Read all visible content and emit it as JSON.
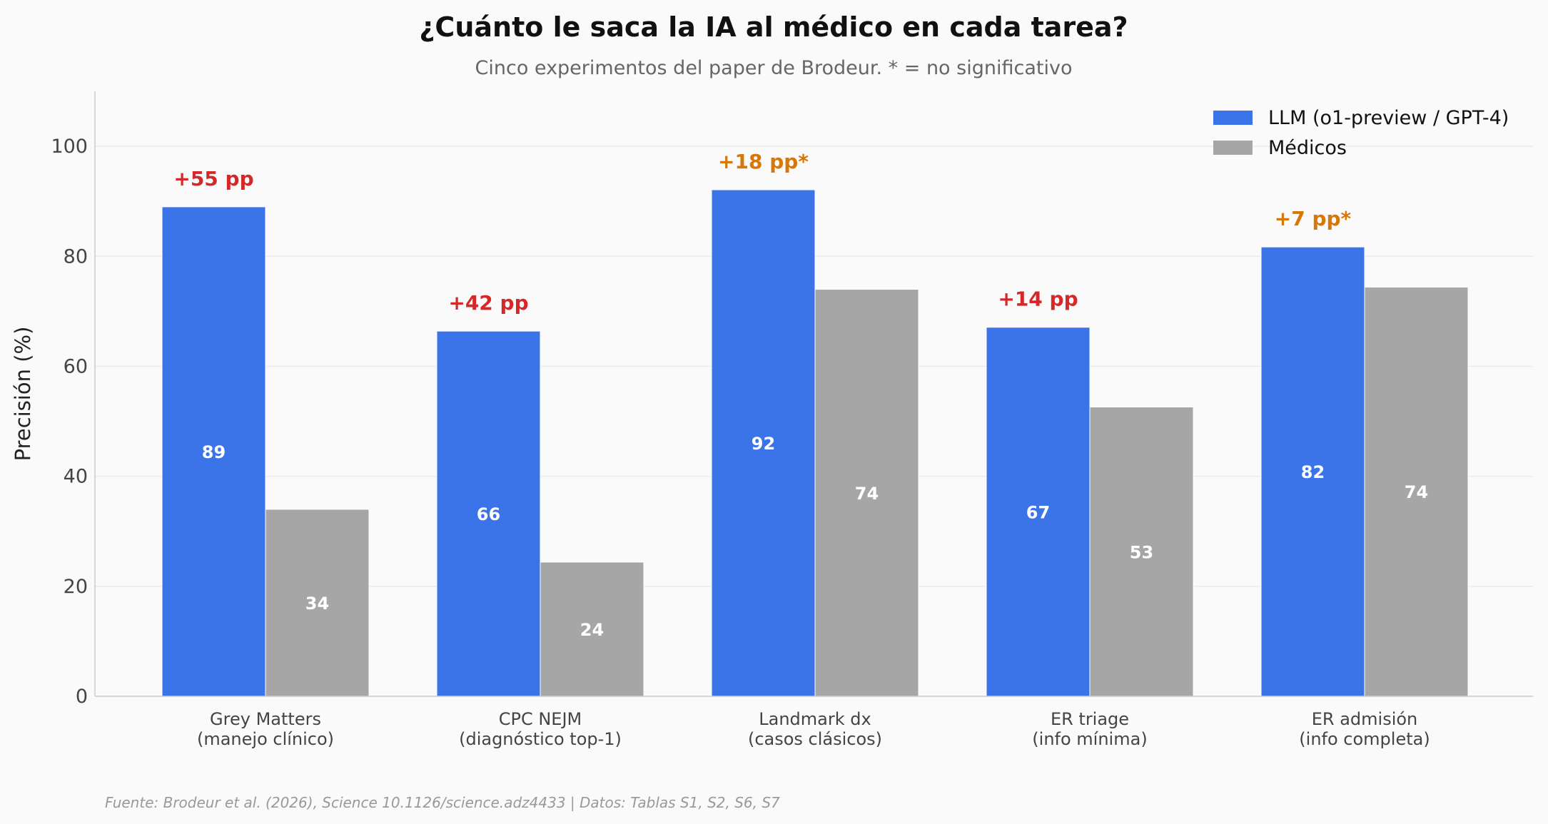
{
  "chart_data": {
    "type": "bar",
    "title": "¿Cuánto le saca la IA al médico en cada tarea?",
    "subtitle": "Cinco experimentos del paper de Brodeur. * = no significativo",
    "xlabel": "",
    "ylabel": "Precisión (%)",
    "ylim": [
      0,
      110
    ],
    "yticks": [
      0,
      20,
      40,
      60,
      80,
      100
    ],
    "grid": true,
    "legend_position": "top-right",
    "categories": [
      [
        "Grey Matters",
        "(manejo clínico)"
      ],
      [
        "CPC NEJM",
        "(diagnóstico top-1)"
      ],
      [
        "Landmark dx",
        "(casos clásicos)"
      ],
      [
        "ER triage",
        "(info mínima)"
      ],
      [
        "ER admisión",
        "(info completa)"
      ]
    ],
    "series": [
      {
        "name": "LLM (o1-preview / GPT-4)",
        "color": "#3b73e8",
        "values": [
          89.0,
          66.4,
          92.1,
          67.1,
          81.7
        ],
        "labels": [
          "89",
          "66",
          "92",
          "67",
          "82"
        ]
      },
      {
        "name": "Médicos",
        "color": "#a6a6a6",
        "values": [
          34.0,
          24.4,
          74.0,
          52.6,
          74.4
        ],
        "labels": [
          "34",
          "24",
          "74",
          "53",
          "74"
        ]
      }
    ],
    "annotations": [
      {
        "text": "+55 pp",
        "significant": true
      },
      {
        "text": "+42 pp",
        "significant": true
      },
      {
        "text": "+18 pp*",
        "significant": false
      },
      {
        "text": "+14 pp",
        "significant": true
      },
      {
        "text": "+7 pp*",
        "significant": false
      }
    ],
    "annotation_colors": {
      "significant": "#d62828",
      "not_significant": "#d97706"
    },
    "source": "Fuente: Brodeur et al. (2026), Science 10.1126/science.adz4433 | Datos: Tablas S1, S2, S6, S7"
  }
}
